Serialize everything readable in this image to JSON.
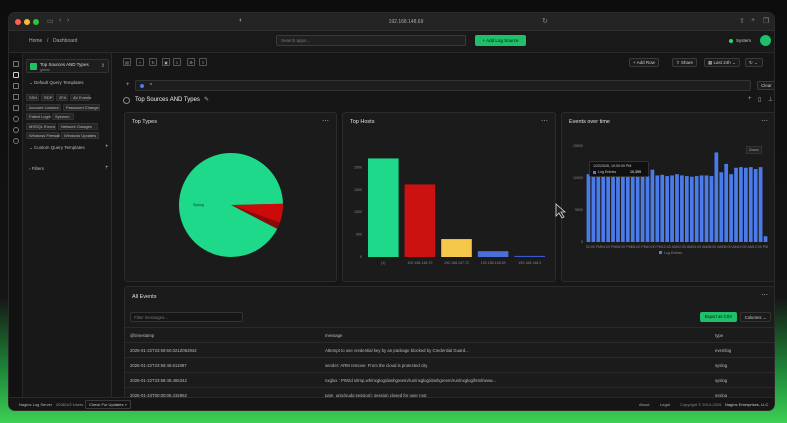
{
  "browser": {
    "url": "192.168.148.69",
    "tab_title": "Dashboard"
  },
  "app": {
    "logo": "N",
    "breadcrumb_home": "Home",
    "breadcrumb_sep": "/",
    "breadcrumb_page": "Dashboard",
    "search_placeholder": "Search apps...",
    "add_source_label": "+ Add Log Source",
    "system_label": "System"
  },
  "sidebar": {
    "dashboard_name": "Top Sources AND Types",
    "dashboard_sub": "global",
    "default_templates_label": "Default Query Templates",
    "chips": [
      "SSH",
      "RDP",
      "2FA",
      "AV Events",
      "Account Lockout",
      "Password Change",
      "Failed Login",
      "Sysmon",
      "MSSQL Errors",
      "Network Outages",
      "Windows Firewall",
      "Windows Updates"
    ],
    "custom_templates_label": "Custom Query Templates",
    "filters_label": "Filters"
  },
  "toolbar": {
    "add_row_label": "+ Add Row",
    "share_label": "Share",
    "time_range_label": "Last 24h",
    "clear_label": "Clear",
    "query_text": "*"
  },
  "dashboard": {
    "title": "Top Sources AND Types"
  },
  "panels": {
    "top_types": {
      "title": "Top Types"
    },
    "top_hosts": {
      "title": "Top Hosts"
    },
    "events_time": {
      "title": "Events over time",
      "zoom_label": "Zoom",
      "tooltip_time": "1/22/2026, 10:00:00 PM",
      "tooltip_series": "Log Entries",
      "tooltip_value": "10,399"
    }
  },
  "chart_data": [
    {
      "type": "pie",
      "title": "Top Types",
      "slices": [
        {
          "label": "Syslog",
          "value": 92,
          "color": "#1ed98a"
        },
        {
          "label": "",
          "value": 6,
          "color": "#cc0a0a"
        },
        {
          "label": "",
          "value": 2,
          "color": "#8a0a0a"
        }
      ]
    },
    {
      "type": "bar",
      "title": "Top Hosts",
      "categories": [
        "(1)",
        "192.168.148.70",
        "192.168.147.72",
        "192.168.148.69",
        "192.168.148.3"
      ],
      "values": [
        2200,
        1620,
        400,
        130,
        25
      ],
      "colors": [
        "#1ed98a",
        "#cc1111",
        "#f5c84c",
        "#4a6fd9",
        "#3a5ad0"
      ],
      "yticks": [
        "0",
        "500",
        "1000",
        "1500",
        "2000"
      ],
      "ylim": [
        0,
        2500
      ]
    },
    {
      "type": "bar",
      "title": "Events over time",
      "series": [
        {
          "name": "Log Entries",
          "values": [
            10600,
            11400,
            10800,
            10500,
            10300,
            10400,
            10300,
            10400,
            10300,
            10400,
            10300,
            10500,
            10300,
            11300,
            10400,
            10500,
            10300,
            10400,
            10600,
            10400,
            10300,
            10200,
            10300,
            10400,
            10400,
            10300,
            14000,
            10900,
            12200,
            10600,
            11600,
            11700,
            11600,
            11700,
            11400,
            11700,
            900
          ]
        }
      ],
      "xticks": [
        "02:00 PM",
        "04:00 PM",
        "06:00 PM",
        "08:00 PM",
        "10:00 PM",
        "12:00 AM",
        "02:00 AM",
        "04:00 AM",
        "06:00 AM",
        "08:00 AM",
        "10:00 AM",
        "12:00 PM"
      ],
      "yticks": [
        "0",
        "5000",
        "10000",
        "15000"
      ],
      "ylim": [
        0,
        15000
      ],
      "color": "#4a7be8",
      "legend": "bottom"
    }
  ],
  "all_events": {
    "title": "All Events",
    "filter_placeholder": "Filter messages...",
    "export_label": "Export as CSV",
    "columns_label": "Columns",
    "headers": [
      "@timestamp",
      "message",
      "type"
    ],
    "rows": [
      {
        "ts": "2026-01-22T23:59:50.021Z062842",
        "msg": "Attempt to use credential key by an package blocked by Credential Guard...",
        "type": "eventlog"
      },
      {
        "ts": "2026-01-22T23:58:48.611987",
        "msg": "sender: ARM remove: From the cloud is protected city",
        "type": "syslog"
      },
      {
        "ts": "2026-01-22T23:58:48.465342",
        "msg": "nxglox : PW2d s/tmp.wh/nxglog/dashgreem/run/nxglog/dashgreem/run/nxglog/html/www...",
        "type": "syslog"
      },
      {
        "ts": "2026-01-23T00:00:05.415952",
        "msg": "pam_unix(sudo:session): session closed for user root",
        "type": "syslog"
      }
    ]
  },
  "footer": {
    "brand": "Nagios Log Server",
    "license_users": "2026/1/2 Users",
    "check_updates": "Check For Updates »",
    "about": "About",
    "legal": "Legal",
    "copyright": "Copyright © 2014-2026",
    "company": "Nagios Enterprises, LLC"
  }
}
